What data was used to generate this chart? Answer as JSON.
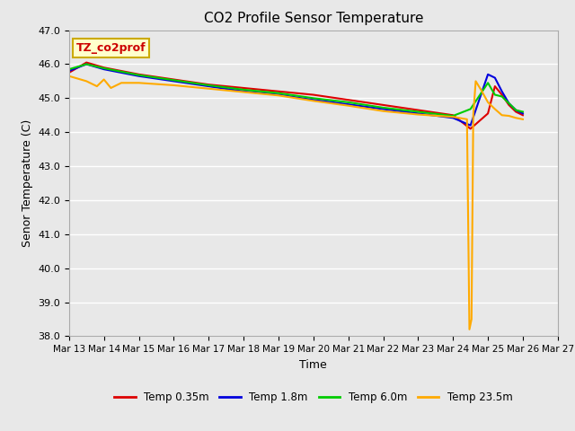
{
  "title": "CO2 Profile Sensor Temperature",
  "xlabel": "Time",
  "ylabel": "Senor Temperature (C)",
  "annotation_text": "TZ_co2prof",
  "annotation_bg": "#ffffcc",
  "annotation_border": "#ccaa00",
  "ylim": [
    38.0,
    47.0
  ],
  "yticks": [
    38.0,
    39.0,
    40.0,
    41.0,
    42.0,
    43.0,
    44.0,
    45.0,
    46.0,
    47.0
  ],
  "bg_color": "#e8e8e8",
  "grid_color": "#ffffff",
  "legend_labels": [
    "Temp 0.35m",
    "Temp 1.8m",
    "Temp 6.0m",
    "Temp 23.5m"
  ],
  "line_colors": [
    "#dd0000",
    "#0000dd",
    "#00cc00",
    "#ffaa00"
  ],
  "line_width": 1.5,
  "series": {
    "red": {
      "x": [
        0.0,
        0.5,
        1.0,
        1.5,
        2.0,
        3.0,
        4.0,
        5.0,
        6.0,
        7.0,
        8.0,
        9.0,
        10.0,
        11.0,
        11.5,
        12.0,
        12.2,
        12.4,
        12.6,
        12.8,
        13.0
      ],
      "y": [
        45.75,
        46.05,
        45.9,
        45.8,
        45.7,
        45.55,
        45.4,
        45.3,
        45.2,
        45.1,
        44.95,
        44.8,
        44.65,
        44.5,
        44.1,
        44.55,
        45.35,
        45.1,
        44.8,
        44.6,
        44.5
      ]
    },
    "blue": {
      "x": [
        0.0,
        0.5,
        1.0,
        1.5,
        2.0,
        3.0,
        4.0,
        5.0,
        6.0,
        7.0,
        8.0,
        9.0,
        10.0,
        11.0,
        11.5,
        12.0,
        12.2,
        12.4,
        12.6,
        12.8,
        13.0
      ],
      "y": [
        45.8,
        46.0,
        45.85,
        45.75,
        45.65,
        45.5,
        45.35,
        45.2,
        45.1,
        44.95,
        44.82,
        44.68,
        44.55,
        44.42,
        44.2,
        45.7,
        45.6,
        45.2,
        44.85,
        44.65,
        44.55
      ]
    },
    "green": {
      "x": [
        0.0,
        0.5,
        1.0,
        1.5,
        2.0,
        3.0,
        4.0,
        5.0,
        6.0,
        7.0,
        8.0,
        9.0,
        10.0,
        11.0,
        11.5,
        12.0,
        12.2,
        12.4,
        12.6,
        12.8,
        13.0
      ],
      "y": [
        45.85,
        46.0,
        45.88,
        45.78,
        45.68,
        45.53,
        45.38,
        45.25,
        45.15,
        45.0,
        44.88,
        44.72,
        44.6,
        44.48,
        44.68,
        45.45,
        45.1,
        45.05,
        44.85,
        44.65,
        44.6
      ]
    },
    "yellow": {
      "x": [
        0.0,
        0.5,
        0.8,
        1.0,
        1.2,
        1.5,
        2.0,
        3.0,
        4.0,
        5.0,
        6.0,
        7.0,
        8.0,
        9.0,
        10.0,
        11.0,
        11.4,
        11.47,
        11.53,
        11.58,
        11.65,
        11.8,
        12.0,
        12.2,
        12.4,
        12.6,
        12.8,
        13.0
      ],
      "y": [
        45.65,
        45.5,
        45.35,
        45.55,
        45.3,
        45.45,
        45.45,
        45.38,
        45.28,
        45.18,
        45.08,
        44.92,
        44.78,
        44.62,
        44.52,
        44.45,
        44.38,
        38.2,
        38.5,
        44.5,
        45.5,
        45.25,
        44.88,
        44.68,
        44.5,
        44.48,
        44.42,
        44.38
      ]
    }
  },
  "xtick_labels": [
    "Mar 13",
    "Mar 14",
    "Mar 15",
    "Mar 16",
    "Mar 17",
    "Mar 18",
    "Mar 19",
    "Mar 20",
    "Mar 21",
    "Mar 22",
    "Mar 23",
    "Mar 24",
    "Mar 25",
    "Mar 26",
    "Mar 27"
  ],
  "xtick_days": [
    0,
    1,
    2,
    3,
    4,
    5,
    6,
    7,
    8,
    9,
    10,
    11,
    12,
    13,
    14
  ],
  "xlim": [
    0,
    14
  ]
}
